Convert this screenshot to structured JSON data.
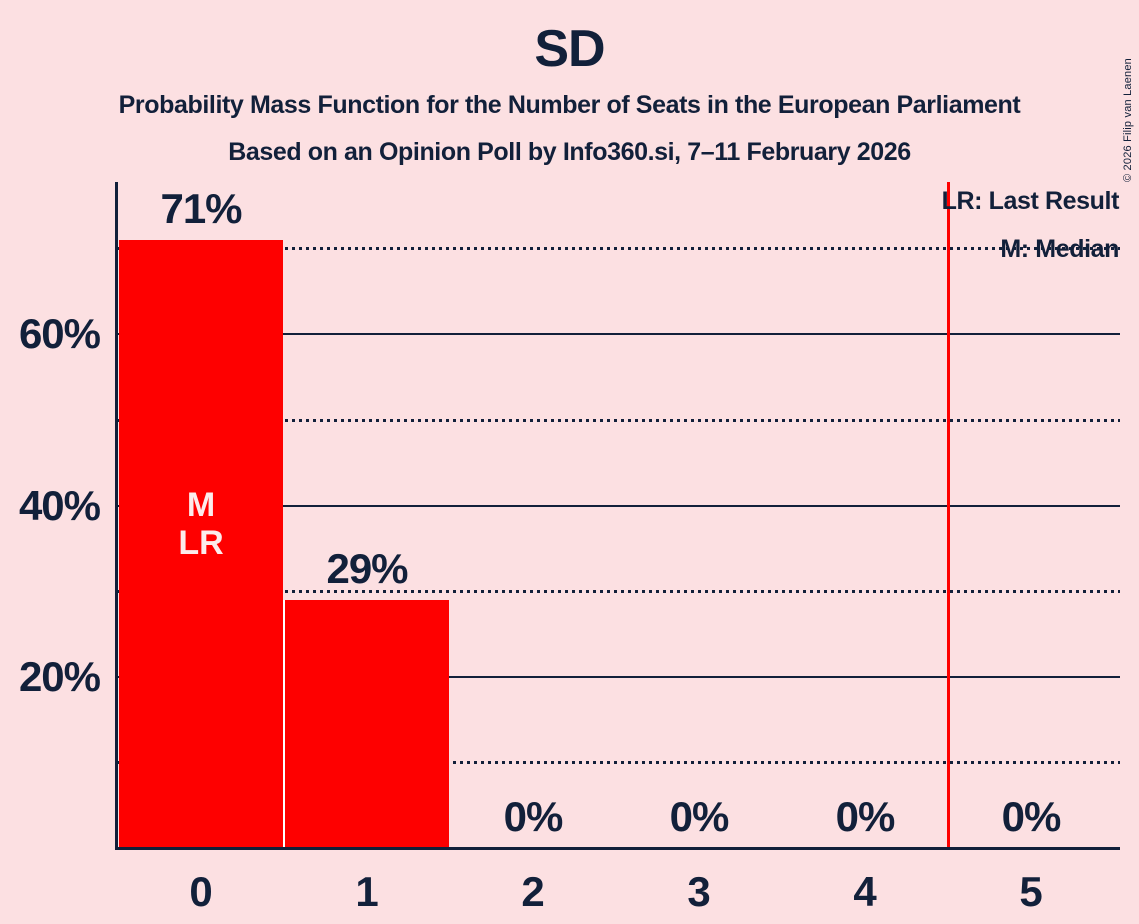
{
  "copyright": "© 2026 Filip van Laenen",
  "legend": {
    "last_result": "LR: Last Result",
    "median": "M: Median"
  },
  "colors": {
    "background": "#fce0e2",
    "bar": "#fe0000",
    "marker_line": "#fe0000",
    "text": "#12203a",
    "bar_divider": "#ffffff",
    "bar_annotation_text": "#fcecec"
  },
  "chart_data": {
    "type": "bar",
    "title": "SD",
    "subtitle": "Probability Mass Function for the Number of Seats in the European Parliament",
    "source_line": "Based on an Opinion Poll by Info360.si, 7–11 February 2026",
    "xlabel": "",
    "ylabel": "",
    "categories": [
      "0",
      "1",
      "2",
      "3",
      "4",
      "5"
    ],
    "values": [
      71,
      29,
      0,
      0,
      0,
      0
    ],
    "bar_labels": [
      "71%",
      "29%",
      "0%",
      "0%",
      "0%",
      "0%"
    ],
    "ylim": [
      0,
      77.8
    ],
    "yticks_solid": [
      20,
      40,
      60
    ],
    "ytick_labels": [
      "20%",
      "40%",
      "60%"
    ],
    "yticks_dotted": [
      10,
      30,
      50,
      70
    ],
    "grid": "horizontal-only",
    "legend_position": "top-right",
    "median_category": "0",
    "last_result_category": "0",
    "last_result_marker_x": 4.5,
    "bar_annotations": [
      {
        "category": "0",
        "lines": [
          "M",
          "LR"
        ]
      }
    ]
  }
}
